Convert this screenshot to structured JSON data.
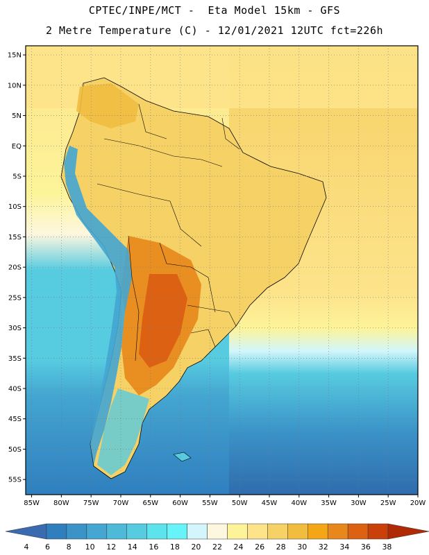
{
  "header": {
    "line1": "CPTEC/INPE/MCT -  Eta Model 15km - GFS",
    "line2": "2 Metre Temperature (C) - 12/01/2021 12UTC fct=226h"
  },
  "map": {
    "lon_range": [
      -86,
      -20
    ],
    "lat_range": [
      -57.5,
      16.5
    ],
    "lat_ticks": [
      "15N",
      "10N",
      "5N",
      "EQ",
      "5S",
      "10S",
      "15S",
      "20S",
      "25S",
      "30S",
      "35S",
      "40S",
      "45S",
      "50S",
      "55S"
    ],
    "lat_values": [
      15,
      10,
      5,
      0,
      -5,
      -10,
      -15,
      -20,
      -25,
      -30,
      -35,
      -40,
      -45,
      -50,
      -55
    ],
    "lon_ticks": [
      "85W",
      "80W",
      "75W",
      "70W",
      "65W",
      "60W",
      "55W",
      "50W",
      "45W",
      "40W",
      "35W",
      "30W",
      "25W",
      "20W"
    ],
    "lon_values": [
      -85,
      -80,
      -75,
      -70,
      -65,
      -60,
      -55,
      -50,
      -45,
      -40,
      -35,
      -30,
      -25,
      -20
    ]
  },
  "colorbar": {
    "labels": [
      "4",
      "6",
      "8",
      "10",
      "12",
      "14",
      "16",
      "18",
      "20",
      "22",
      "24",
      "26",
      "28",
      "30",
      "32",
      "34",
      "36",
      "38"
    ],
    "colors": [
      "#3a6ab0",
      "#2f7fbf",
      "#3b93c8",
      "#44a6d1",
      "#4ebad8",
      "#57cbe0",
      "#5ce3ec",
      "#66f4f8",
      "#d2f6fb",
      "#fdf7df",
      "#fdf49a",
      "#fde38a",
      "#f6d165",
      "#f0bd3f",
      "#f4a617",
      "#e8871b",
      "#dc6112",
      "#c94008",
      "#b02a05"
    ]
  }
}
